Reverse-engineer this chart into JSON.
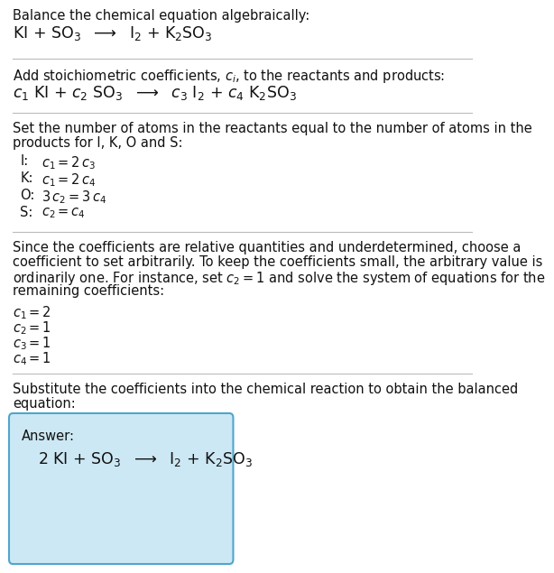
{
  "background_color": "#ffffff",
  "text_color": "#111111",
  "box_fill_color": "#cce8f4",
  "box_edge_color": "#4da6cc",
  "divider_color": "#bbbbbb",
  "section1_line1": "Balance the chemical equation algebraically:",
  "section1_eq": "KI + SO$_3$  $\\longrightarrow$  I$_2$ + K$_2$SO$_3$",
  "section2_line1": "Add stoichiometric coefficients, $c_i$, to the reactants and products:",
  "section2_eq": "$c_1$ KI + $c_2$ SO$_3$  $\\longrightarrow$  $c_3$ I$_2$ + $c_4$ K$_2$SO$_3$",
  "section3_line1": "Set the number of atoms in the reactants equal to the number of atoms in the",
  "section3_line2": "products for I, K, O and S:",
  "section3_atoms": [
    [
      "I:",
      "$c_1 = 2\\,c_3$"
    ],
    [
      "K:",
      "$c_1 = 2\\,c_4$"
    ],
    [
      "O:",
      "$3\\,c_2 = 3\\,c_4$"
    ],
    [
      "S:",
      "$c_2 = c_4$"
    ]
  ],
  "section4_line1": "Since the coefficients are relative quantities and underdetermined, choose a",
  "section4_line2": "coefficient to set arbitrarily. To keep the coefficients small, the arbitrary value is",
  "section4_line3": "ordinarily one. For instance, set $c_2 = 1$ and solve the system of equations for the",
  "section4_line4": "remaining coefficients:",
  "section4_solutions": [
    "$c_1 = 2$",
    "$c_2 = 1$",
    "$c_3 = 1$",
    "$c_4 = 1$"
  ],
  "section5_line1": "Substitute the coefficients into the chemical reaction to obtain the balanced",
  "section5_line2": "equation:",
  "answer_label": "Answer:",
  "answer_eq": "2 KI + SO$_3$  $\\longrightarrow$  I$_2$ + K$_2$SO$_3$",
  "fs_body": 10.5,
  "fs_eq": 12.5
}
